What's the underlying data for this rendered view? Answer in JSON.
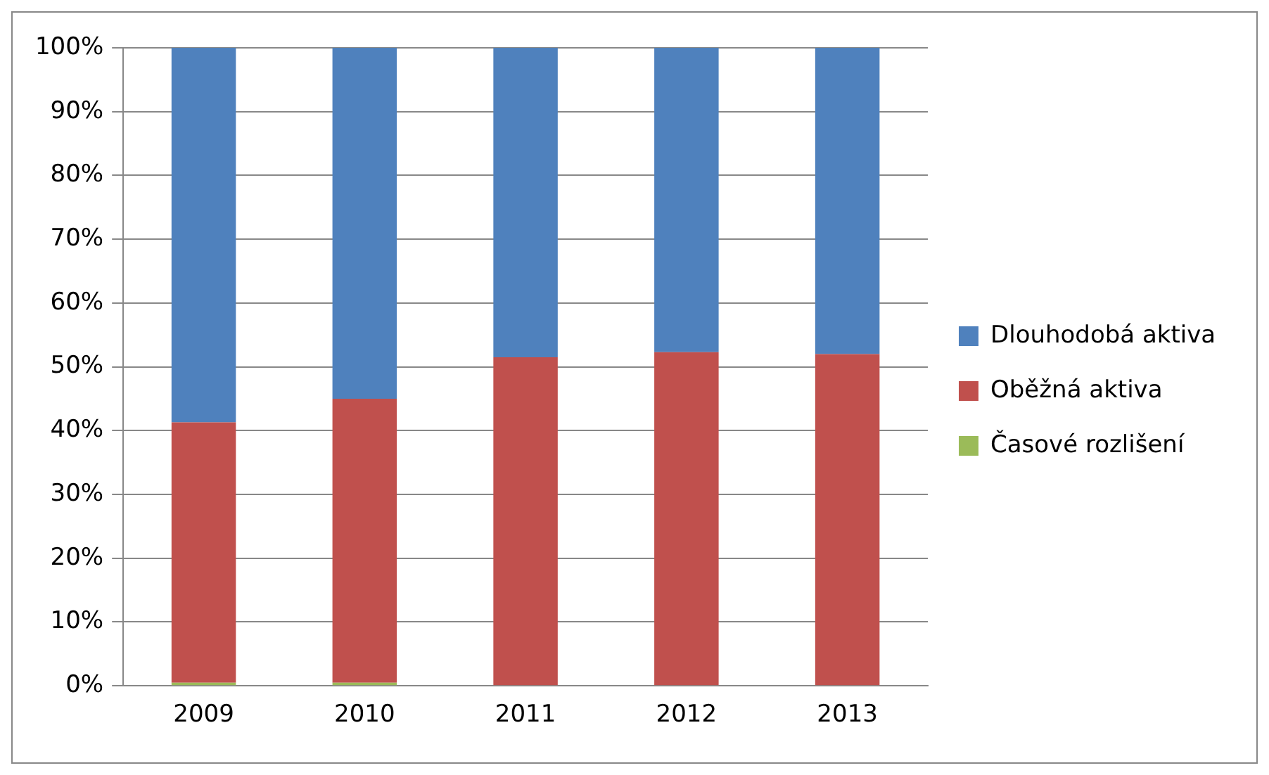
{
  "chart_data": {
    "type": "bar",
    "stacked": true,
    "categories": [
      "2009",
      "2010",
      "2011",
      "2012",
      "2013"
    ],
    "series": [
      {
        "name": "Časové rozlišení",
        "color": "#9bbb59",
        "values": [
          0.5,
          0.5,
          null,
          null,
          null
        ]
      },
      {
        "name": "Oběžná aktiva",
        "color": "#c0504d",
        "values": [
          40.8,
          44.5,
          51.5,
          52.3,
          52.0
        ]
      },
      {
        "name": "Dlouhodobá aktiva",
        "color": "#4f81bd",
        "values": [
          58.7,
          55.0,
          48.5,
          47.7,
          48.0
        ]
      }
    ],
    "ylim": [
      0,
      100
    ],
    "yticks": [
      {
        "value": 0,
        "label": "0%"
      },
      {
        "value": 10,
        "label": "10%"
      },
      {
        "value": 20,
        "label": "20%"
      },
      {
        "value": 30,
        "label": "30%"
      },
      {
        "value": 40,
        "label": "40%"
      },
      {
        "value": 50,
        "label": "50%"
      },
      {
        "value": 60,
        "label": "60%"
      },
      {
        "value": 70,
        "label": "70%"
      },
      {
        "value": 80,
        "label": "80%"
      },
      {
        "value": 90,
        "label": "90%"
      },
      {
        "value": 100,
        "label": "100%"
      }
    ],
    "grid": "y",
    "legend": "right"
  }
}
